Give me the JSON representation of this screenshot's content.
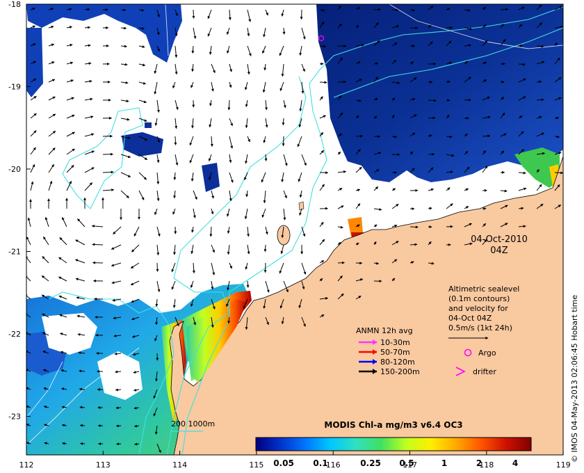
{
  "map": {
    "x_ticks": [
      "112",
      "113",
      "114",
      "115",
      "116",
      "117",
      "118",
      "119"
    ],
    "y_ticks": [
      "-18",
      "-19",
      "-20",
      "-21",
      "-22",
      "-23"
    ],
    "lon_range": [
      112,
      119
    ],
    "lat_range": [
      -23.5,
      -18
    ]
  },
  "date_label": {
    "line1": "04-Oct-2010",
    "line2": "04Z"
  },
  "altimetry_note": [
    "Altimetric sealevel",
    "(0.1m contours)",
    "and velocity for",
    "04-Oct 04Z",
    "0.5m/s (1kt 24h)"
  ],
  "anmn": {
    "title": "ANMN 12h avg",
    "items": [
      {
        "label": "10-30m",
        "color": "#ff33ff"
      },
      {
        "label": "50-70m",
        "color": "#ff0000"
      },
      {
        "label": "80-120m",
        "color": "#0000ff"
      },
      {
        "label": "150-200m",
        "color": "#000000"
      }
    ]
  },
  "markers": {
    "argo_label": "Argo",
    "drifter_label": "drifter",
    "marker_color": "#ff00ff"
  },
  "isobath_label": "200  1000m",
  "colorbar": {
    "title": "MODIS Chl-a mg/m3 v6.4 OC3",
    "ticks": [
      "0.05",
      "0.1",
      "0.25",
      "0.5",
      "1",
      "2",
      "4"
    ],
    "stops": [
      "#000080",
      "#0033cc",
      "#0077ff",
      "#00c8ff",
      "#30e0c0",
      "#40e060",
      "#c0ff20",
      "#ffee00",
      "#ffaa00",
      "#ff5500",
      "#cc1100",
      "#800000"
    ]
  },
  "credit": "© IMOS 04-May-2013 02:06:45 Hobart time",
  "colors": {
    "land": "#f9c9a0",
    "ocean_deep": "#0a2d8f",
    "cloud": "#ffffff",
    "contour": "#40e0e0"
  }
}
